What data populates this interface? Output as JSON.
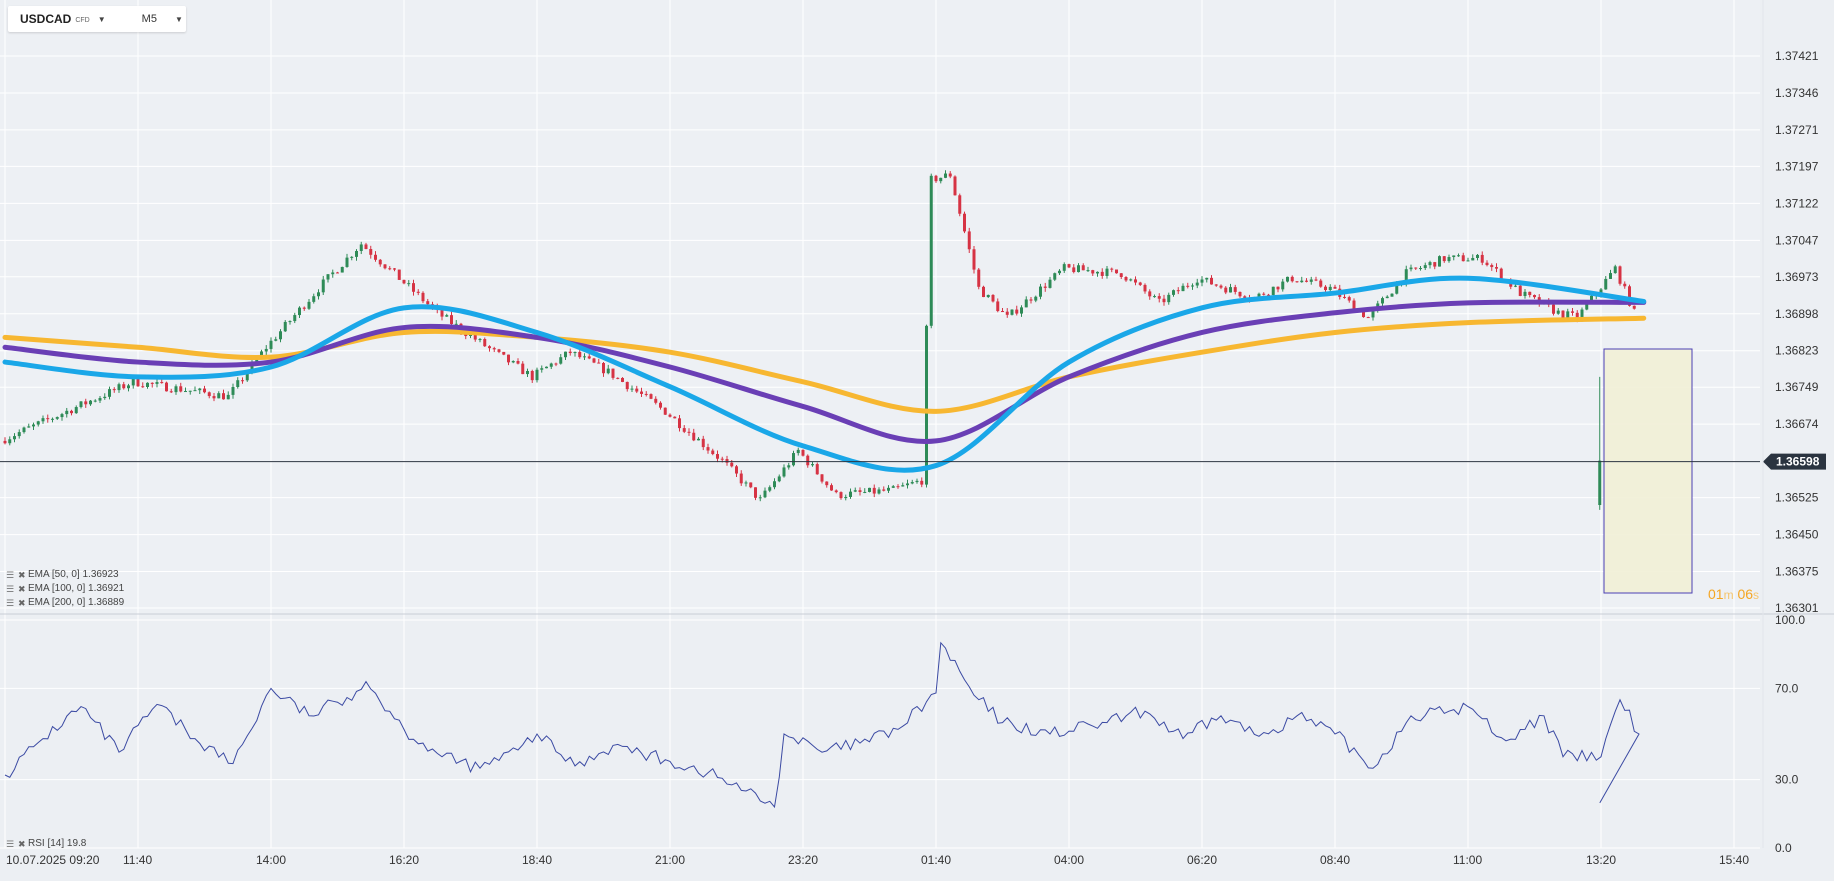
{
  "header": {
    "symbol": "USDCAD",
    "badge": "CFD",
    "timeframe": "M5"
  },
  "indicators": {
    "ema50": "EMA [50, 0] 1.36923",
    "ema100": "EMA [100, 0] 1.36921",
    "ema200": "EMA [200, 0] 1.36889",
    "rsi": "RSI [14] 19.8"
  },
  "timer": {
    "minutes": "01",
    "m": "m",
    "seconds": "06",
    "s": "s"
  },
  "colors": {
    "up": "#2e8b57",
    "down": "#d63344",
    "ema50": "#1aa7e8",
    "ema100": "#6a3fb5",
    "ema200": "#f7b731",
    "rsi": "#3b4aa3",
    "current_price_bg": "#2b3440"
  },
  "chart_data": [
    {
      "type": "candlestick",
      "y_axis_ticks": [
        "1.37421",
        "1.37346",
        "1.37271",
        "1.37197",
        "1.37122",
        "1.37047",
        "1.36973",
        "1.36898",
        "1.36823",
        "1.36749",
        "1.36674",
        "1.36598",
        "1.36525",
        "1.36450",
        "1.36375",
        "1.36301"
      ],
      "ylim": [
        1.36301,
        1.37421
      ],
      "current_price": "1.36598",
      "x_axis_ticks": [
        "10.07.2025  09:20",
        "11:40",
        "14:00",
        "16:20",
        "18:40",
        "21:00",
        "23:20",
        "01:40",
        "04:00",
        "06:20",
        "08:40",
        "11:00",
        "13:20",
        "15:40"
      ],
      "x_start": "10.07.2025 09:20",
      "interval_minutes": 5,
      "key_prices": [
        {
          "time": "10.07.2025 09:20",
          "price": 1.3664
        },
        {
          "time": "11:40",
          "price": 1.3676
        },
        {
          "time": "13:20",
          "price": 1.3673
        },
        {
          "time": "14:00",
          "price": 1.3683
        },
        {
          "time": "15:00",
          "price": 1.3696
        },
        {
          "time": "15:40",
          "price": 1.3704
        },
        {
          "time": "16:20",
          "price": 1.3697
        },
        {
          "time": "17:00",
          "price": 1.369
        },
        {
          "time": "18:00",
          "price": 1.3682
        },
        {
          "time": "18:40",
          "price": 1.3677
        },
        {
          "time": "19:20",
          "price": 1.3682
        },
        {
          "time": "20:00",
          "price": 1.3678
        },
        {
          "time": "21:00",
          "price": 1.367
        },
        {
          "time": "22:00",
          "price": 1.366
        },
        {
          "time": "22:40",
          "price": 1.3652
        },
        {
          "time": "23:20",
          "price": 1.3662
        },
        {
          "time": "00:00",
          "price": 1.3653
        },
        {
          "time": "01:00",
          "price": 1.3654
        },
        {
          "time": "01:30",
          "price": 1.3656
        },
        {
          "time": "01:40",
          "price": 1.3717
        },
        {
          "time": "02:00",
          "price": 1.3718
        },
        {
          "time": "02:30",
          "price": 1.3695
        },
        {
          "time": "03:00",
          "price": 1.3689
        },
        {
          "time": "04:00",
          "price": 1.3699
        },
        {
          "time": "05:00",
          "price": 1.3698
        },
        {
          "time": "05:40",
          "price": 1.3692
        },
        {
          "time": "06:20",
          "price": 1.3697
        },
        {
          "time": "07:20",
          "price": 1.3693
        },
        {
          "time": "08:00",
          "price": 1.3697
        },
        {
          "time": "08:40",
          "price": 1.3695
        },
        {
          "time": "09:20",
          "price": 1.3689
        },
        {
          "time": "10:00",
          "price": 1.3698
        },
        {
          "time": "10:40",
          "price": 1.3701
        },
        {
          "time": "11:20",
          "price": 1.3701
        },
        {
          "time": "12:00",
          "price": 1.3694
        },
        {
          "time": "12:40",
          "price": 1.369
        },
        {
          "time": "13:00",
          "price": 1.3689
        },
        {
          "time": "13:40",
          "price": 1.3699
        },
        {
          "time": "14:00",
          "price": 1.369
        },
        {
          "time": "14:05",
          "price": 1.36598
        }
      ],
      "series": [
        {
          "name": "EMA [50, 0]",
          "last": 1.36923,
          "values": [
            {
              "time": "10.07.2025 09:20",
              "price": 1.368
            },
            {
              "time": "11:40",
              "price": 1.3677
            },
            {
              "time": "14:00",
              "price": 1.3679
            },
            {
              "time": "16:20",
              "price": 1.3691
            },
            {
              "time": "18:40",
              "price": 1.3686
            },
            {
              "time": "21:00",
              "price": 1.3675
            },
            {
              "time": "23:20",
              "price": 1.3663
            },
            {
              "time": "01:40",
              "price": 1.3659
            },
            {
              "time": "04:00",
              "price": 1.368
            },
            {
              "time": "06:20",
              "price": 1.3691
            },
            {
              "time": "08:40",
              "price": 1.3694
            },
            {
              "time": "11:00",
              "price": 1.3697
            },
            {
              "time": "14:05",
              "price": 1.36923
            }
          ]
        },
        {
          "name": "EMA [100, 0]",
          "last": 1.36921,
          "values": [
            {
              "time": "10.07.2025 09:20",
              "price": 1.3683
            },
            {
              "time": "11:40",
              "price": 1.368
            },
            {
              "time": "14:00",
              "price": 1.368
            },
            {
              "time": "16:20",
              "price": 1.3687
            },
            {
              "time": "18:40",
              "price": 1.3685
            },
            {
              "time": "21:00",
              "price": 1.3679
            },
            {
              "time": "23:20",
              "price": 1.3671
            },
            {
              "time": "01:40",
              "price": 1.3664
            },
            {
              "time": "04:00",
              "price": 1.3677
            },
            {
              "time": "06:20",
              "price": 1.3686
            },
            {
              "time": "08:40",
              "price": 1.369
            },
            {
              "time": "11:00",
              "price": 1.3692
            },
            {
              "time": "14:05",
              "price": 1.36921
            }
          ]
        },
        {
          "name": "EMA [200, 0]",
          "last": 1.36889,
          "values": [
            {
              "time": "10.07.2025 09:20",
              "price": 1.3685
            },
            {
              "time": "11:40",
              "price": 1.3683
            },
            {
              "time": "14:00",
              "price": 1.3681
            },
            {
              "time": "16:20",
              "price": 1.3686
            },
            {
              "time": "18:40",
              "price": 1.3685
            },
            {
              "time": "21:00",
              "price": 1.3682
            },
            {
              "time": "23:20",
              "price": 1.3676
            },
            {
              "time": "01:40",
              "price": 1.367
            },
            {
              "time": "04:00",
              "price": 1.3677
            },
            {
              "time": "06:20",
              "price": 1.3682
            },
            {
              "time": "08:40",
              "price": 1.3686
            },
            {
              "time": "11:00",
              "price": 1.3688
            },
            {
              "time": "14:05",
              "price": 1.36889
            }
          ]
        }
      ]
    },
    {
      "type": "line",
      "y_axis_ticks": [
        "100.0",
        "70.0",
        "30.0",
        "0.0"
      ],
      "ylim": [
        0,
        100
      ],
      "series": [
        {
          "name": "RSI [14]",
          "last": 19.8,
          "values": [
            {
              "time": "10.07.2025 09:20",
              "value": 32
            },
            {
              "time": "10:00",
              "value": 48
            },
            {
              "time": "10:40",
              "value": 62
            },
            {
              "time": "11:20",
              "value": 42
            },
            {
              "time": "12:00",
              "value": 63
            },
            {
              "time": "12:40",
              "value": 48
            },
            {
              "time": "13:20",
              "value": 37
            },
            {
              "time": "14:00",
              "value": 70
            },
            {
              "time": "14:40",
              "value": 58
            },
            {
              "time": "15:20",
              "value": 66
            },
            {
              "time": "15:40",
              "value": 73
            },
            {
              "time": "16:20",
              "value": 52
            },
            {
              "time": "17:00",
              "value": 40
            },
            {
              "time": "17:40",
              "value": 35
            },
            {
              "time": "18:20",
              "value": 43
            },
            {
              "time": "18:40",
              "value": 50
            },
            {
              "time": "19:20",
              "value": 36
            },
            {
              "time": "20:00",
              "value": 45
            },
            {
              "time": "21:00",
              "value": 38
            },
            {
              "time": "21:40",
              "value": 33
            },
            {
              "time": "22:20",
              "value": 25
            },
            {
              "time": "22:50",
              "value": 18
            },
            {
              "time": "23:00",
              "value": 50
            },
            {
              "time": "23:40",
              "value": 42
            },
            {
              "time": "00:20",
              "value": 46
            },
            {
              "time": "01:00",
              "value": 52
            },
            {
              "time": "01:40",
              "value": 68
            },
            {
              "time": "01:45",
              "value": 90
            },
            {
              "time": "02:20",
              "value": 67
            },
            {
              "time": "02:50",
              "value": 55
            },
            {
              "time": "03:40",
              "value": 50
            },
            {
              "time": "04:40",
              "value": 55
            },
            {
              "time": "05:20",
              "value": 60
            },
            {
              "time": "06:00",
              "value": 48
            },
            {
              "time": "06:40",
              "value": 58
            },
            {
              "time": "07:20",
              "value": 49
            },
            {
              "time": "08:00",
              "value": 58
            },
            {
              "time": "08:40",
              "value": 50
            },
            {
              "time": "09:20",
              "value": 35
            },
            {
              "time": "10:00",
              "value": 58
            },
            {
              "time": "10:40",
              "value": 60
            },
            {
              "time": "11:00",
              "value": 62
            },
            {
              "time": "11:40",
              "value": 47
            },
            {
              "time": "12:20",
              "value": 58
            },
            {
              "time": "12:40",
              "value": 40
            },
            {
              "time": "13:20",
              "value": 40
            },
            {
              "time": "13:40",
              "value": 65
            },
            {
              "time": "14:00",
              "value": 50
            },
            {
              "time": "14:05",
              "value": 19.8
            }
          ]
        }
      ]
    }
  ]
}
